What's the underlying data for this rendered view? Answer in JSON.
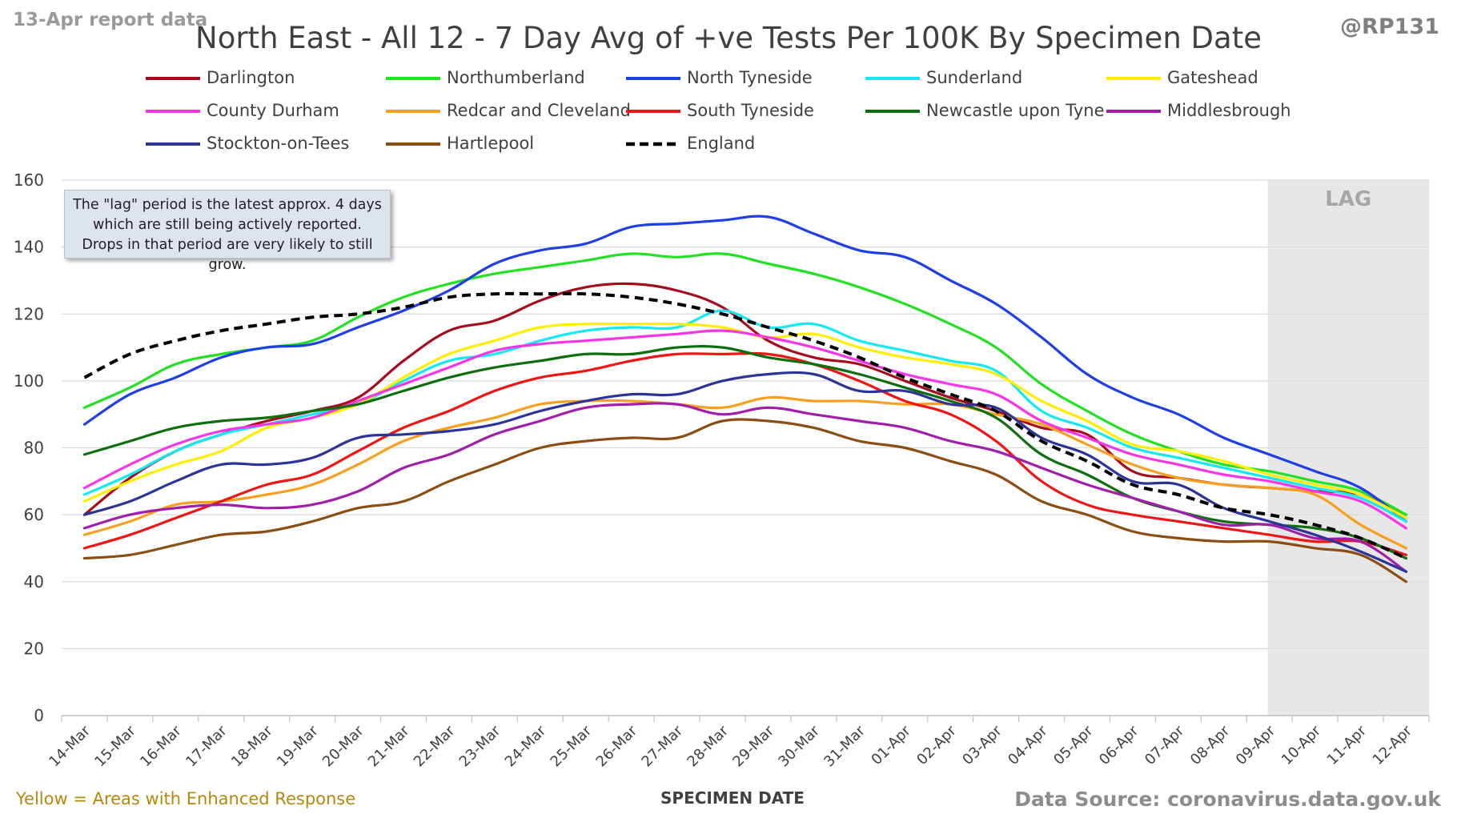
{
  "header": {
    "report_label": "13-Apr report data",
    "handle": "@RP131"
  },
  "footer": {
    "enhanced_note": "Yellow = Areas with Enhanced Response",
    "source": "Data Source: coronavirus.data.gov.uk"
  },
  "annotation": {
    "lag_note": "The \"lag\" period is the latest approx. 4 days which are still being actively reported. Drops in that period are very likely to still grow.",
    "lag_label": "LAG"
  },
  "colors": {
    "grid": "#d9d9d9",
    "axis": "#bfbfbf",
    "lag_shade": "#e7e7e7",
    "lag_text": "#a6a6a6"
  },
  "chart_data": {
    "type": "line",
    "title": "North East - All 12 - 7 Day Avg of +ve Tests Per 100K By Specimen Date",
    "xlabel": "SPECIMEN DATE",
    "ylabel": "",
    "ylim": [
      0,
      160
    ],
    "yticks": [
      0,
      20,
      40,
      60,
      80,
      100,
      120,
      140,
      160
    ],
    "grid": true,
    "legend_position": "top",
    "lag_period": [
      "09-Apr",
      "12-Apr"
    ],
    "x": [
      "14-Mar",
      "15-Mar",
      "16-Mar",
      "17-Mar",
      "18-Mar",
      "19-Mar",
      "20-Mar",
      "21-Mar",
      "22-Mar",
      "23-Mar",
      "24-Mar",
      "25-Mar",
      "26-Mar",
      "27-Mar",
      "28-Mar",
      "29-Mar",
      "30-Mar",
      "31-Mar",
      "01-Apr",
      "02-Apr",
      "03-Apr",
      "04-Apr",
      "05-Apr",
      "06-Apr",
      "07-Apr",
      "08-Apr",
      "09-Apr",
      "10-Apr",
      "11-Apr",
      "12-Apr"
    ],
    "series": [
      {
        "name": "Darlington",
        "color": "#a50d1e",
        "dash": false,
        "values": [
          60,
          71,
          79,
          84,
          88,
          91,
          95,
          106,
          115,
          118,
          124,
          128,
          129,
          127,
          122,
          112,
          107,
          105,
          100,
          95,
          91,
          86,
          84,
          73,
          71,
          69,
          68,
          67,
          66,
          59
        ]
      },
      {
        "name": "Northumberland",
        "color": "#22e022",
        "dash": false,
        "values": [
          92,
          98,
          105,
          108,
          110,
          112,
          119,
          125,
          129,
          132,
          134,
          136,
          138,
          137,
          138,
          135,
          132,
          128,
          123,
          117,
          110,
          99,
          91,
          84,
          79,
          75,
          73,
          70,
          67,
          60
        ]
      },
      {
        "name": "North Tyneside",
        "color": "#1f3fe6",
        "dash": false,
        "values": [
          87,
          96,
          101,
          107,
          110,
          111,
          116,
          121,
          127,
          135,
          139,
          141,
          146,
          147,
          148,
          149,
          144,
          139,
          137,
          130,
          123,
          113,
          102,
          95,
          90,
          83,
          78,
          73,
          68,
          58
        ]
      },
      {
        "name": "Sunderland",
        "color": "#14e8f0",
        "dash": false,
        "values": [
          66,
          72,
          79,
          84,
          87,
          90,
          93,
          100,
          106,
          108,
          112,
          115,
          116,
          116,
          121,
          116,
          117,
          112,
          109,
          106,
          103,
          91,
          86,
          80,
          77,
          74,
          71,
          68,
          65,
          58
        ]
      },
      {
        "name": "Gateshead",
        "color": "#ffee00",
        "dash": false,
        "values": [
          64,
          70,
          75,
          79,
          86,
          89,
          93,
          101,
          108,
          112,
          116,
          117,
          117,
          117,
          116,
          113,
          114,
          110,
          107,
          105,
          102,
          94,
          88,
          81,
          79,
          76,
          72,
          69,
          66,
          59
        ]
      },
      {
        "name": "County Durham",
        "color": "#f536e6",
        "dash": false,
        "values": [
          68,
          75,
          81,
          85,
          87,
          89,
          94,
          99,
          104,
          109,
          111,
          112,
          113,
          114,
          115,
          113,
          110,
          106,
          102,
          99,
          96,
          88,
          83,
          78,
          75,
          72,
          70,
          67,
          64,
          56
        ]
      },
      {
        "name": "Redcar and Cleveland",
        "color": "#f7a020",
        "dash": false,
        "values": [
          54,
          58,
          63,
          64,
          66,
          69,
          75,
          82,
          86,
          89,
          93,
          94,
          94,
          93,
          92,
          95,
          94,
          94,
          93,
          93,
          90,
          87,
          81,
          75,
          71,
          69,
          68,
          66,
          57,
          50
        ]
      },
      {
        "name": "South Tyneside",
        "color": "#ee1515",
        "dash": false,
        "values": [
          50,
          54,
          59,
          64,
          69,
          72,
          79,
          86,
          91,
          97,
          101,
          103,
          106,
          108,
          108,
          108,
          105,
          100,
          94,
          90,
          82,
          70,
          63,
          60,
          58,
          56,
          54,
          52,
          52,
          48
        ]
      },
      {
        "name": "Newcastle upon Tyne",
        "color": "#0e6e0e",
        "dash": false,
        "values": [
          78,
          82,
          86,
          88,
          89,
          91,
          93,
          97,
          101,
          104,
          106,
          108,
          108,
          110,
          110,
          107,
          105,
          102,
          98,
          94,
          89,
          78,
          72,
          65,
          61,
          58,
          57,
          56,
          53,
          47
        ]
      },
      {
        "name": "Middlesbrough",
        "color": "#9f1fa8",
        "dash": false,
        "values": [
          56,
          60,
          62,
          63,
          62,
          63,
          67,
          74,
          78,
          84,
          88,
          92,
          93,
          93,
          90,
          92,
          90,
          88,
          86,
          82,
          79,
          74,
          69,
          65,
          61,
          57,
          57,
          53,
          52,
          43
        ]
      },
      {
        "name": "Stockton-on-Tees",
        "color": "#2c3597",
        "dash": false,
        "values": [
          60,
          64,
          70,
          75,
          75,
          77,
          83,
          84,
          85,
          87,
          91,
          94,
          96,
          96,
          100,
          102,
          102,
          97,
          97,
          93,
          92,
          83,
          78,
          70,
          69,
          62,
          58,
          54,
          49,
          43
        ]
      },
      {
        "name": "Hartlepool",
        "color": "#8a4e12",
        "dash": false,
        "values": [
          47,
          48,
          51,
          54,
          55,
          58,
          62,
          64,
          70,
          75,
          80,
          82,
          83,
          83,
          88,
          88,
          86,
          82,
          80,
          76,
          72,
          64,
          60,
          55,
          53,
          52,
          52,
          50,
          48,
          40
        ]
      },
      {
        "name": "England",
        "color": "#000000",
        "dash": true,
        "values": [
          101,
          108,
          112,
          115,
          117,
          119,
          120,
          122,
          125,
          126,
          126,
          126,
          125,
          123,
          120,
          116,
          112,
          107,
          101,
          96,
          91,
          82,
          76,
          69,
          66,
          62,
          60,
          57,
          53,
          47
        ]
      }
    ]
  }
}
